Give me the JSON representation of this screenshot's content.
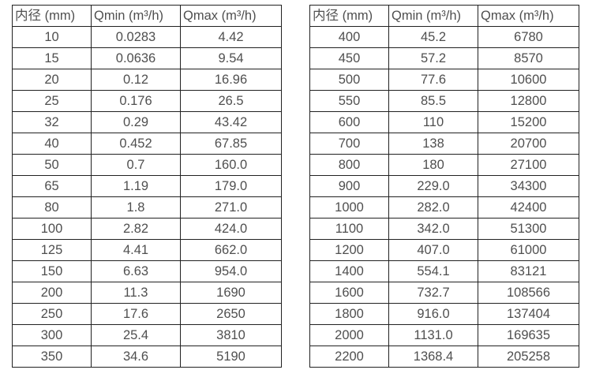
{
  "colors": {
    "background": "#ffffff",
    "border": "#212121",
    "text": "#4f4f4f"
  },
  "tables": [
    {
      "name": "small-diameters",
      "headers": [
        "内径 (mm)",
        "Qmin (m³/h)",
        "Qmax (m³/h)"
      ],
      "rows": [
        [
          "10",
          "0.0283",
          "4.42"
        ],
        [
          "15",
          "0.0636",
          "9.54"
        ],
        [
          "20",
          "0.12",
          "16.96"
        ],
        [
          "25",
          "0.176",
          "26.5"
        ],
        [
          "32",
          "0.29",
          "43.42"
        ],
        [
          "40",
          "0.452",
          "67.85"
        ],
        [
          "50",
          "0.7",
          "160.0"
        ],
        [
          "65",
          "1.19",
          "179.0"
        ],
        [
          "80",
          "1.8",
          "271.0"
        ],
        [
          "100",
          "2.82",
          "424.0"
        ],
        [
          "125",
          "4.41",
          "662.0"
        ],
        [
          "150",
          "6.63",
          "954.0"
        ],
        [
          "200",
          "11.3",
          "1690"
        ],
        [
          "250",
          "17.6",
          "2650"
        ],
        [
          "300",
          "25.4",
          "3810"
        ],
        [
          "350",
          "34.6",
          "5190"
        ]
      ]
    },
    {
      "name": "large-diameters",
      "headers": [
        "内径 (mm)",
        "Qmin (m³/h)",
        "Qmax (m³/h)"
      ],
      "rows": [
        [
          "400",
          "45.2",
          "6780"
        ],
        [
          "450",
          "57.2",
          "8570"
        ],
        [
          "500",
          "77.6",
          "10600"
        ],
        [
          "550",
          "85.5",
          "12800"
        ],
        [
          "600",
          "110",
          "15200"
        ],
        [
          "700",
          "138",
          "20700"
        ],
        [
          "800",
          "180",
          "27100"
        ],
        [
          "900",
          "229.0",
          "34300"
        ],
        [
          "1000",
          "282.0",
          "42400"
        ],
        [
          "1100",
          "342.0",
          "51300"
        ],
        [
          "1200",
          "407.0",
          "61000"
        ],
        [
          "1400",
          "554.1",
          "83121"
        ],
        [
          "1600",
          "732.7",
          "108566"
        ],
        [
          "1800",
          "916.0",
          "137404"
        ],
        [
          "2000",
          "1131.0",
          "169635"
        ],
        [
          "2200",
          "1368.4",
          "205258"
        ]
      ]
    }
  ]
}
